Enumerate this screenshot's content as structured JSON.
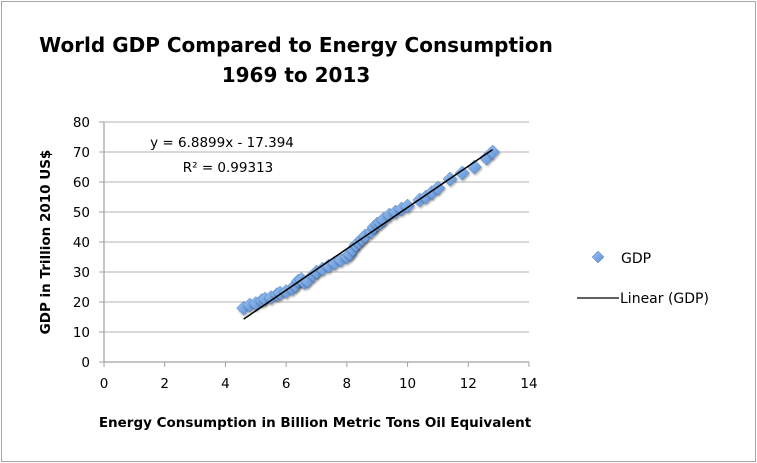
{
  "chart_data": {
    "type": "scatter",
    "title": "World GDP Compared to Energy Consumption",
    "subtitle": "1969 to 2013",
    "xlabel": "Energy Consumption in Billion Metric Tons Oil Equivalent",
    "ylabel": "GDP in Trillion 2010 US$",
    "xlim": [
      0,
      14
    ],
    "ylim": [
      0,
      80
    ],
    "x_ticks": [
      "0",
      "2",
      "4",
      "6",
      "8",
      "10",
      "12",
      "14"
    ],
    "y_ticks": [
      "0",
      "10",
      "20",
      "30",
      "40",
      "50",
      "60",
      "70",
      "80"
    ],
    "grid": "horizontal",
    "legend_position": "right",
    "series": [
      {
        "name": "GDP",
        "marker": "diamond",
        "color": "#6fa3e0",
        "x": [
          4.6,
          4.8,
          5.0,
          5.2,
          5.3,
          5.5,
          5.7,
          5.8,
          6.0,
          6.2,
          6.3,
          6.4,
          6.5,
          6.6,
          6.7,
          6.9,
          7.0,
          7.2,
          7.4,
          7.6,
          7.8,
          8.0,
          8.1,
          8.2,
          8.3,
          8.4,
          8.5,
          8.6,
          8.8,
          8.9,
          9.0,
          9.1,
          9.2,
          9.4,
          9.6,
          9.8,
          10.0,
          10.4,
          10.6,
          10.8,
          11.0,
          11.4,
          11.8,
          12.2,
          12.6,
          12.8
        ],
        "y": [
          18.0,
          19.0,
          19.5,
          20.5,
          21.0,
          21.5,
          22.5,
          23.0,
          23.5,
          24.5,
          25.5,
          27.0,
          27.5,
          26.5,
          27.0,
          29.0,
          30.0,
          31.0,
          32.0,
          33.0,
          34.0,
          35.0,
          36.0,
          37.5,
          39.0,
          40.0,
          41.0,
          42.0,
          43.5,
          45.0,
          46.0,
          46.5,
          47.5,
          49.0,
          50.0,
          51.0,
          52.0,
          54.0,
          55.0,
          56.5,
          58.0,
          61.0,
          63.0,
          65.0,
          68.0,
          70.0
        ]
      }
    ],
    "trendline": {
      "name": "Linear (GDP)",
      "type": "linear",
      "slope": 6.8899,
      "intercept": -17.394,
      "x_range": [
        4.6,
        12.8
      ],
      "equation_label": "y = 6.8899x - 17.394",
      "r2_label": "R² = 0.99313",
      "color": "#000000"
    },
    "legend": [
      "GDP",
      "Linear (GDP)"
    ]
  }
}
